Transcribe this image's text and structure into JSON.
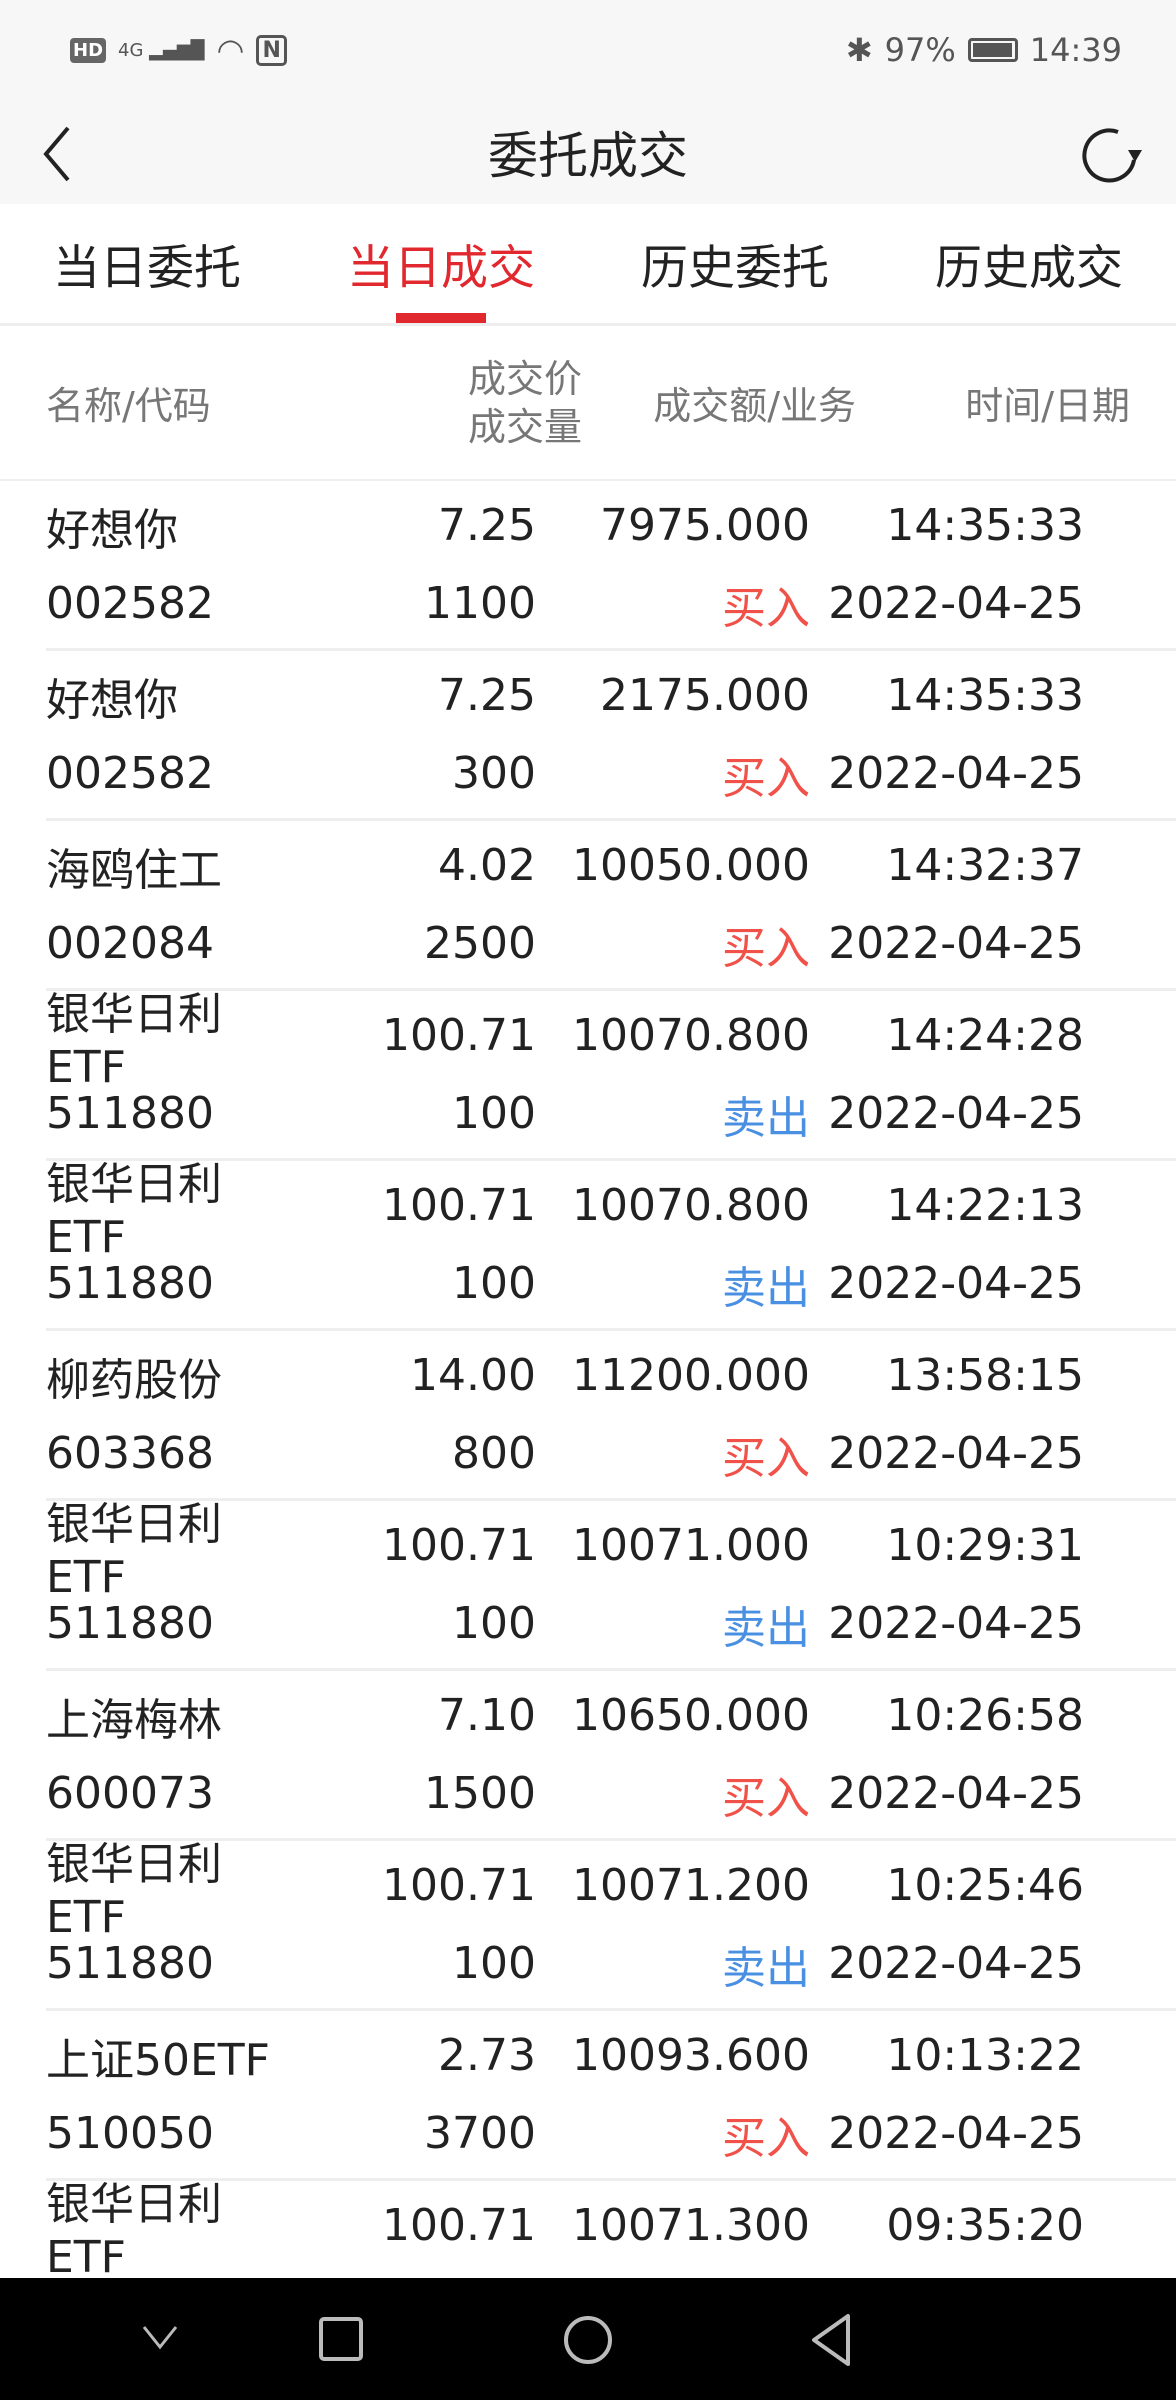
{
  "status": {
    "network": "4G",
    "hd": "HD",
    "battery_pct": "97%",
    "battery_level": 0.97,
    "time": "14:39"
  },
  "header": {
    "title": "委托成交"
  },
  "tabs": [
    {
      "label": "当日委托"
    },
    {
      "label": "当日成交",
      "active": true
    },
    {
      "label": "历史委托"
    },
    {
      "label": "历史成交"
    }
  ],
  "columns": {
    "name": "名称/代码",
    "price": "成交价",
    "qty": "成交量",
    "amount": "成交额/业务",
    "time": "时间/日期"
  },
  "colors": {
    "accent": "#e0282e",
    "buy": "#f0524a",
    "sell": "#4a90e2"
  },
  "rows": [
    {
      "name": "好想你",
      "code": "002582",
      "price": "7.25",
      "qty": "1100",
      "amount": "7975.000",
      "side": "买入",
      "type": "buy",
      "time": "14:35:33",
      "date": "2022-04-25"
    },
    {
      "name": "好想你",
      "code": "002582",
      "price": "7.25",
      "qty": "300",
      "amount": "2175.000",
      "side": "买入",
      "type": "buy",
      "time": "14:35:33",
      "date": "2022-04-25"
    },
    {
      "name": "海鸥住工",
      "code": "002084",
      "price": "4.02",
      "qty": "2500",
      "amount": "10050.000",
      "side": "买入",
      "type": "buy",
      "time": "14:32:37",
      "date": "2022-04-25"
    },
    {
      "name": "银华日利ETF",
      "code": "511880",
      "price": "100.71",
      "qty": "100",
      "amount": "10070.800",
      "side": "卖出",
      "type": "sell",
      "time": "14:24:28",
      "date": "2022-04-25"
    },
    {
      "name": "银华日利ETF",
      "code": "511880",
      "price": "100.71",
      "qty": "100",
      "amount": "10070.800",
      "side": "卖出",
      "type": "sell",
      "time": "14:22:13",
      "date": "2022-04-25"
    },
    {
      "name": "柳药股份",
      "code": "603368",
      "price": "14.00",
      "qty": "800",
      "amount": "11200.000",
      "side": "买入",
      "type": "buy",
      "time": "13:58:15",
      "date": "2022-04-25"
    },
    {
      "name": "银华日利ETF",
      "code": "511880",
      "price": "100.71",
      "qty": "100",
      "amount": "10071.000",
      "side": "卖出",
      "type": "sell",
      "time": "10:29:31",
      "date": "2022-04-25"
    },
    {
      "name": "上海梅林",
      "code": "600073",
      "price": "7.10",
      "qty": "1500",
      "amount": "10650.000",
      "side": "买入",
      "type": "buy",
      "time": "10:26:58",
      "date": "2022-04-25"
    },
    {
      "name": "银华日利ETF",
      "code": "511880",
      "price": "100.71",
      "qty": "100",
      "amount": "10071.200",
      "side": "卖出",
      "type": "sell",
      "time": "10:25:46",
      "date": "2022-04-25"
    },
    {
      "name": "上证50ETF",
      "code": "510050",
      "price": "2.73",
      "qty": "3700",
      "amount": "10093.600",
      "side": "买入",
      "type": "buy",
      "time": "10:13:22",
      "date": "2022-04-25"
    },
    {
      "name": "银华日利ETF",
      "price": "100.71",
      "amount": "10071.300",
      "time": "09:35:20"
    }
  ]
}
